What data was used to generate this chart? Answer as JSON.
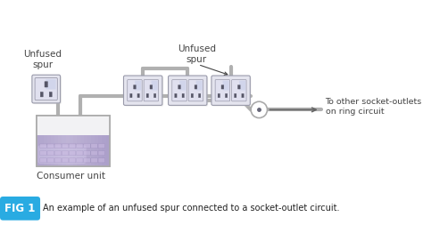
{
  "bg_color": "#ffffff",
  "fig_label_bg": "#29abe2",
  "fig_label_text": "FIG 1",
  "fig_caption": "An example of an unfused spur connected to a socket-outlet circuit.",
  "line_color": "#b0b0b0",
  "line_color2": "#c8c8c8",
  "socket_fill": "#e4e4ee",
  "socket_fill2": "#d0d0e0",
  "socket_border": "#999aaa",
  "consumer_top_fill": "#f0f0f2",
  "consumer_border": "#aaaaaa",
  "label_unfused_spur_left": "Unfused\nspur",
  "label_unfused_spur_top": "Unfused\nspur",
  "label_consumer": "Consumer unit",
  "label_ring": "To other socket-outlets\non ring circuit",
  "label_color": "#444444",
  "junction_fill": "#ffffff",
  "junction_border": "#aaaaaa",
  "arrow_color": "#666666"
}
